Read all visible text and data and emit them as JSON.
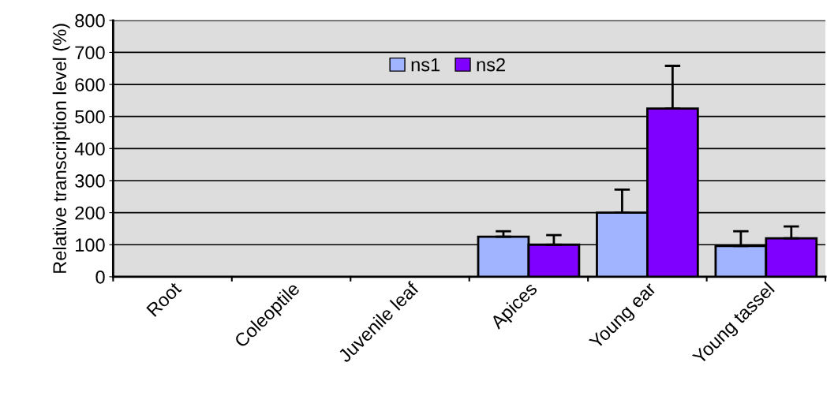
{
  "chart_data": {
    "type": "bar",
    "ylabel": "Relative transcription level (%)",
    "categories": [
      "Root",
      "Coleoptile",
      "Juvenile leaf",
      "Apices",
      "Young ear",
      "Young tassel"
    ],
    "series": [
      {
        "name": "ns1",
        "color": "#a0b4ff",
        "values": [
          null,
          null,
          null,
          125,
          200,
          96
        ],
        "errors": [
          null,
          null,
          null,
          [
            125,
            142
          ],
          [
            200,
            272
          ],
          [
            96,
            142
          ]
        ]
      },
      {
        "name": "ns2",
        "color": "#8000ff",
        "values": [
          null,
          null,
          null,
          100,
          525,
          120
        ],
        "errors": [
          null,
          null,
          null,
          [
            100,
            130
          ],
          [
            525,
            658
          ],
          [
            120,
            157
          ]
        ]
      }
    ],
    "ylim": [
      0,
      800
    ],
    "yticks": [
      0,
      100,
      200,
      300,
      400,
      500,
      600,
      700,
      800
    ],
    "grid": "y",
    "legend": "top"
  }
}
